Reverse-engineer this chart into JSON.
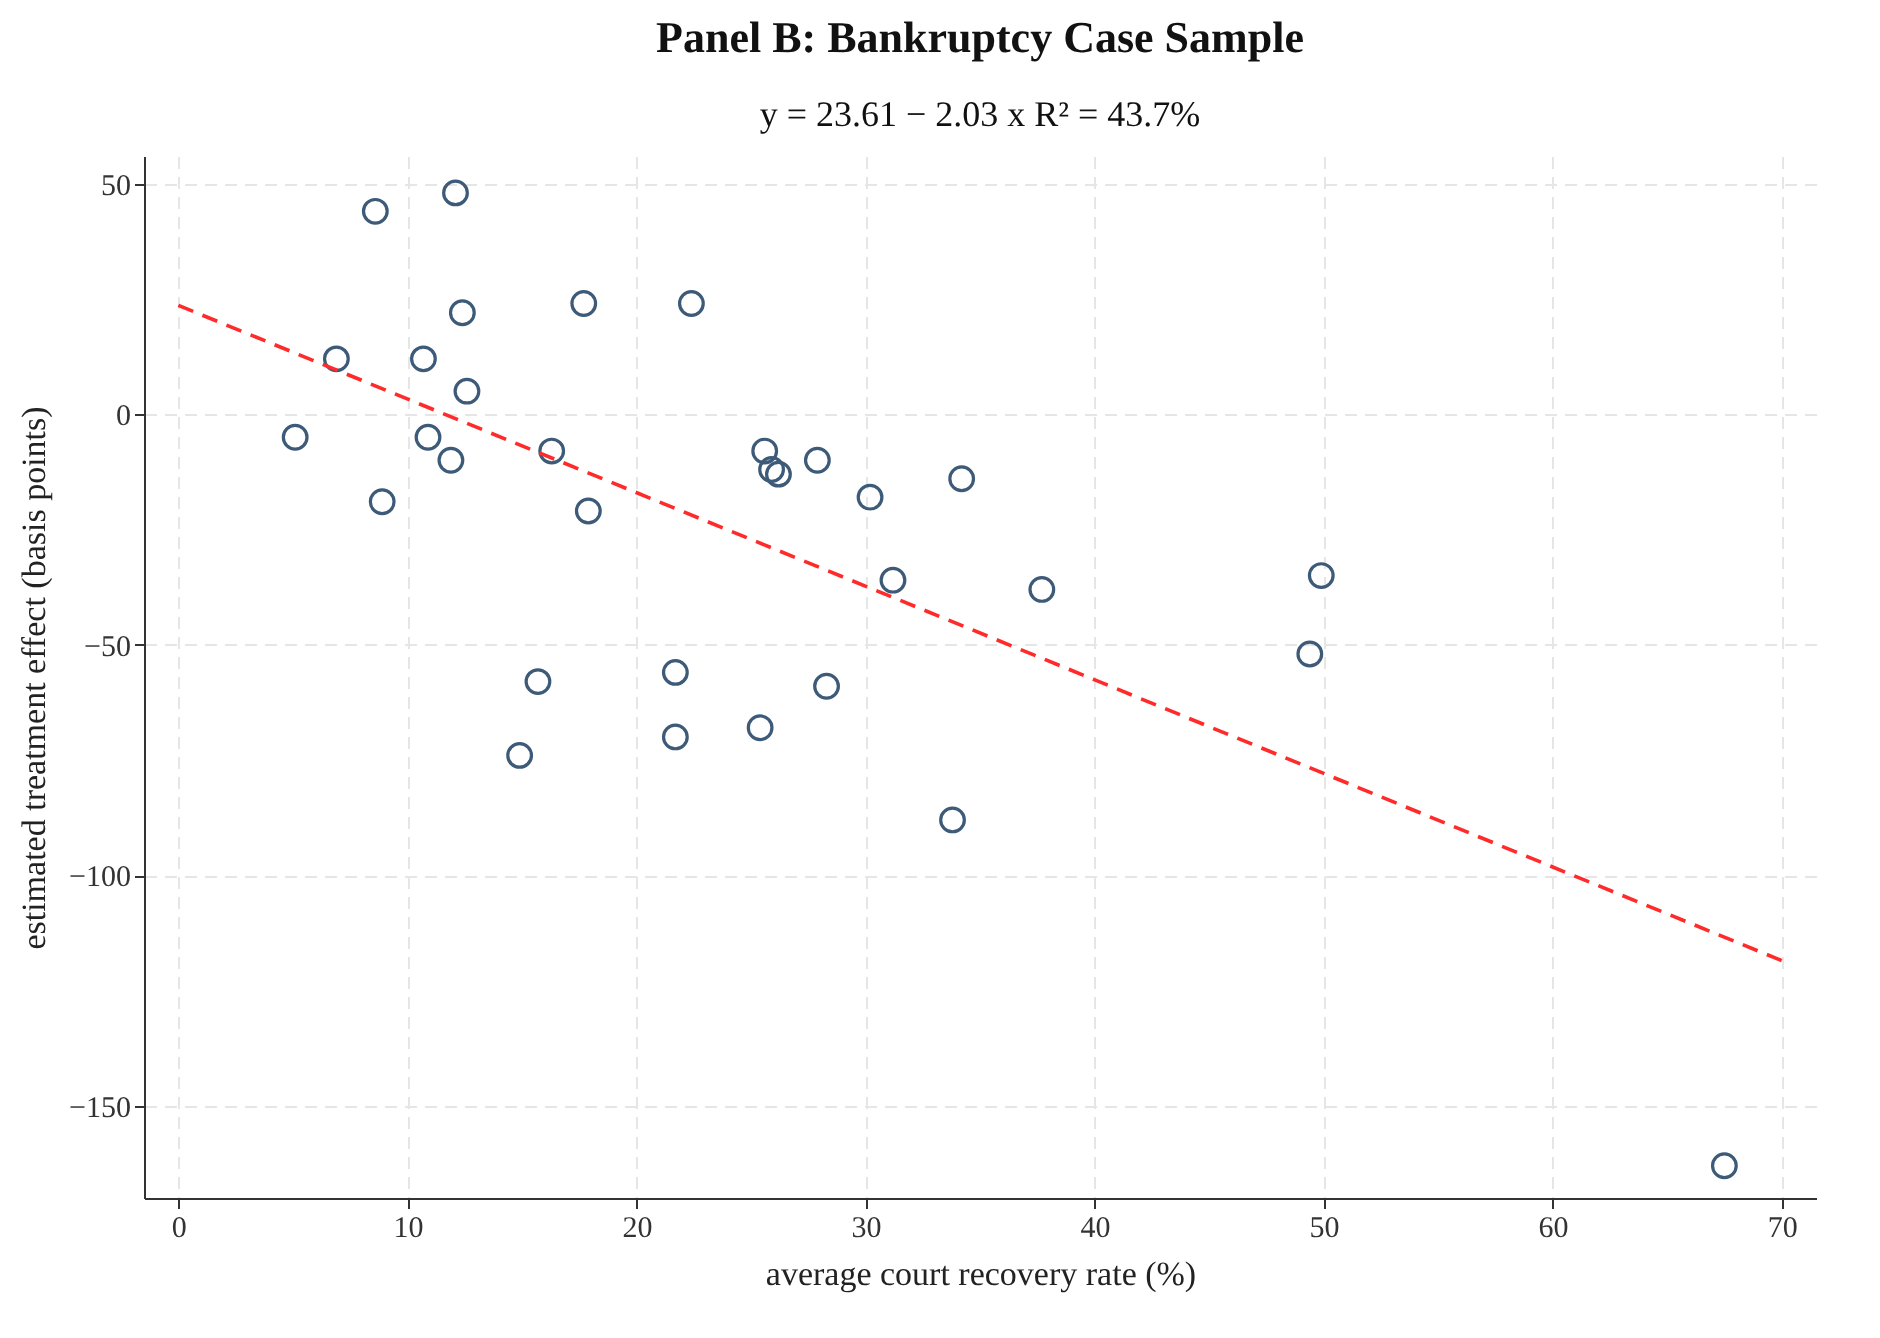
{
  "chart_data": {
    "type": "scatter",
    "title": "Panel B: Bankruptcy Case Sample",
    "subtitle": "y = 23.61 − 2.03 x    R² = 43.7%",
    "xlabel": "average court recovery rate (%)",
    "ylabel": "estimated treatment effect (basis points)",
    "xlim": [
      -1.5,
      71.5
    ],
    "ylim": [
      -170,
      56
    ],
    "xticks": [
      0,
      10,
      20,
      30,
      40,
      50,
      60,
      70
    ],
    "yticks": [
      -150,
      -100,
      -50,
      0,
      50
    ],
    "grid": true,
    "series": [
      {
        "marker": "circle",
        "color": "#3d5a78",
        "x": [
          8.6,
          12.1,
          6.9,
          10.7,
          12.4,
          12.6,
          17.7,
          22.4,
          5.1,
          10.9,
          11.9,
          8.9,
          16.3,
          17.9,
          25.6,
          25.9,
          26.2,
          27.9,
          30.2,
          34.2,
          31.2,
          37.7,
          49.9,
          49.4,
          15.7,
          21.7,
          28.3,
          14.9,
          21.7,
          25.4,
          33.8,
          67.5
        ],
        "values": [
          44,
          48,
          12,
          12,
          22,
          5,
          24,
          24,
          -5,
          -5,
          -10,
          -19,
          -8,
          -21,
          -8,
          -12,
          -13,
          -10,
          -18,
          -14,
          -36,
          -38,
          -35,
          -52,
          -58,
          -56,
          -59,
          -74,
          -70,
          -68,
          -88,
          -163
        ]
      },
      {
        "type": "line",
        "color": "#ff2a2a",
        "line_style": "dashed",
        "x": [
          0,
          70
        ],
        "values": [
          23.6,
          -118.5
        ]
      }
    ]
  }
}
